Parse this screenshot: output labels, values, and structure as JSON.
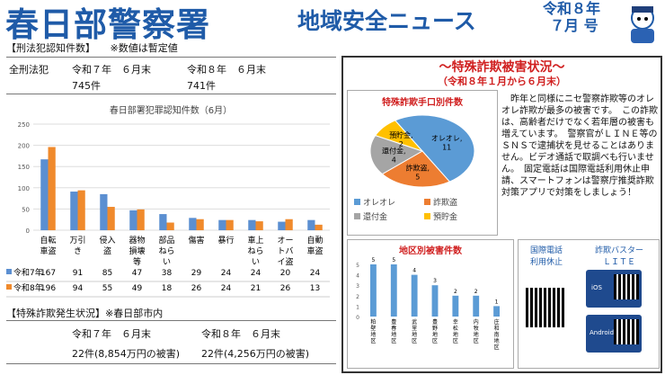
{
  "header": {
    "title": "春日部警察署",
    "subtitle": "地域安全ニュース",
    "date_line1": "令和８年",
    "date_line2": "７月 号"
  },
  "section1": {
    "heading": "【刑法犯認知件数】",
    "note": "※数値は暫定値",
    "label": "全刑法犯",
    "prev_period": "令和７年　６月末",
    "prev_value": "745件",
    "curr_period": "令和８年　６月末",
    "curr_value": "741件"
  },
  "chart_data": {
    "type": "bar",
    "title": "春日部署犯罪認知件数（6月）",
    "categories": [
      "自転車盗",
      "万引き",
      "侵入盗",
      "器物損壊等",
      "部品ねらい",
      "傷害",
      "暴行",
      "車上ねらい",
      "オートバイ盗",
      "自動車盗"
    ],
    "series": [
      {
        "name": "令和7年",
        "values": [
          167,
          91,
          85,
          47,
          38,
          29,
          24,
          24,
          20,
          24
        ],
        "color": "#5b8fd1"
      },
      {
        "name": "令和8年",
        "values": [
          196,
          94,
          55,
          49,
          18,
          26,
          24,
          21,
          26,
          13
        ],
        "color": "#f08a2c"
      }
    ],
    "ylim": [
      0,
      250
    ],
    "yticks": [
      0,
      50,
      100,
      150,
      200,
      250
    ]
  },
  "section2": {
    "heading": "【特殊詐欺発生状況】",
    "note": "※春日部市内",
    "prev_period": "令和７年　６月末",
    "prev_value": "22件(8,854万円の被害)",
    "curr_period": "令和８年　６月末",
    "curr_value": "22件(4,256万円の被害)"
  },
  "fraud": {
    "heading": "〜特殊詐欺被害状況〜",
    "period": "（令和８年１月から６月末）",
    "pie_title": "特殊詐欺手口別件数",
    "pie": [
      {
        "label": "オレオレ",
        "value": 11,
        "color": "#5b9bd5"
      },
      {
        "label": "詐欺盗",
        "value": 5,
        "color": "#ed7d31"
      },
      {
        "label": "還付金",
        "value": 4,
        "color": "#a5a5a5"
      },
      {
        "label": "預貯金",
        "value": 2,
        "color": "#ffc000"
      }
    ],
    "body": "　昨年と同様にニセ警察詐欺等のオレオレ詐欺が最多の被害です。　この詐欺は、高齢者だけでなく若年層の被害も増えています。　警察官がＬＩＮＥ等のＳＮＳで逮捕状を見せることはありません。ビデオ通話で取調べも行いません。　固定電話は国際電話利用休止申請、スマートフォンは警察庁推奨詐欺対策アプリで対策をしましょう！",
    "district_title": "地区別被害件数",
    "district": [
      {
        "label": "粕壁地区",
        "value": 5
      },
      {
        "label": "豊春地区",
        "value": 5
      },
      {
        "label": "武里地区",
        "value": 4
      },
      {
        "label": "豊野地区",
        "value": 3
      },
      {
        "label": "幸松地区",
        "value": 2
      },
      {
        "label": "内牧地区",
        "value": 2
      },
      {
        "label": "庄和南地区",
        "value": 1
      }
    ],
    "intl_label": "国際電話\n利用休止",
    "app_label": "詐欺バスター\nＬＩＴＥ",
    "ios": "iOS",
    "android": "Android"
  }
}
